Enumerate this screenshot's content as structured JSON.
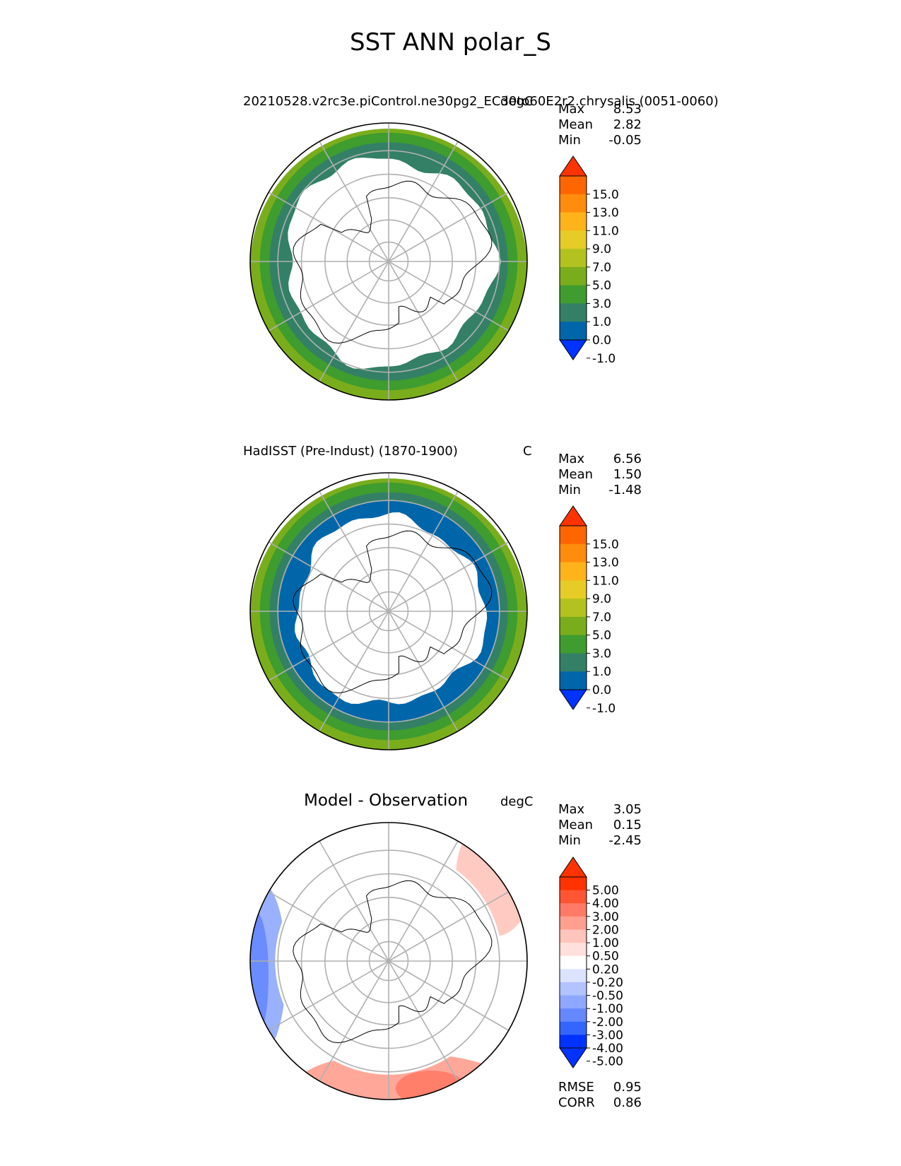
{
  "figure": {
    "title": "SST ANN polar_S"
  },
  "colors": {
    "land": "#ffffff",
    "coast": "#000000",
    "grid": "#b0b0b0",
    "abs_levels": [
      "#0033ff",
      "#0066aa",
      "#338066",
      "#3f9c2f",
      "#7aad1c",
      "#b3c21f",
      "#e6cc26",
      "#ffb31a",
      "#ff8c0d",
      "#ff6600",
      "#ff3300"
    ],
    "diff_levels": [
      "#0033ff",
      "#3366ff",
      "#6688ff",
      "#8fa8ff",
      "#b3c3ff",
      "#dbe3ff",
      "#ffffff",
      "#ffe0dc",
      "#ffc4bb",
      "#ff9f8f",
      "#ff7a66",
      "#ff5533",
      "#ff3300"
    ]
  },
  "panels": [
    {
      "id": "model",
      "left_title": "20210528.v2rc3e.piControl.ne30pg2_EC30to60E2r2.chrysalis (0051-0060)",
      "right_title": "degC",
      "stats": [
        {
          "k": "Max",
          "v": "8.53"
        },
        {
          "k": "Mean",
          "v": "2.82"
        },
        {
          "k": "Min",
          "v": "-0.05"
        }
      ],
      "colorbar_labels": [
        "15.0",
        "13.0",
        "11.0",
        "9.0",
        "7.0",
        "5.0",
        "3.0",
        "1.0",
        "0.0",
        "-1.0"
      ]
    },
    {
      "id": "obs",
      "left_title": "HadISST (Pre-Indust) (1870-1900)",
      "right_title": "C",
      "stats": [
        {
          "k": "Max",
          "v": "6.56"
        },
        {
          "k": "Mean",
          "v": "1.50"
        },
        {
          "k": "Min",
          "v": "-1.48"
        }
      ],
      "colorbar_labels": [
        "15.0",
        "13.0",
        "11.0",
        "9.0",
        "7.0",
        "5.0",
        "3.0",
        "1.0",
        "0.0",
        "-1.0"
      ]
    },
    {
      "id": "diff",
      "center_title": "Model - Observation",
      "right_title": "degC",
      "stats": [
        {
          "k": "Max",
          "v": "3.05"
        },
        {
          "k": "Mean",
          "v": "0.15"
        },
        {
          "k": "Min",
          "v": "-2.45"
        }
      ],
      "colorbar_labels": [
        "5.00",
        "4.00",
        "3.00",
        "2.00",
        "1.00",
        "0.50",
        "0.20",
        "-0.20",
        "-0.50",
        "-1.00",
        "-2.00",
        "-3.00",
        "-4.00",
        "-5.00"
      ],
      "metrics": [
        {
          "k": "RMSE",
          "v": "0.95"
        },
        {
          "k": "CORR",
          "v": "0.86"
        }
      ]
    }
  ],
  "chart_data": {
    "type": "heatmap",
    "title": "SST ANN polar_S",
    "projection": "south polar stereographic",
    "panels": [
      {
        "name": "20210528.v2rc3e.piControl.ne30pg2_EC30to60E2r2.chrysalis (0051-0060)",
        "units": "degC",
        "max": 8.53,
        "mean": 2.82,
        "min": -0.05,
        "contour_levels": [
          -1.0,
          0.0,
          1.0,
          3.0,
          5.0,
          7.0,
          9.0,
          11.0,
          13.0,
          15.0
        ],
        "ring_values": [
          0.6,
          2.0,
          4.0
        ],
        "sea_ice_fraction": 0.75
      },
      {
        "name": "HadISST (Pre-Indust) (1870-1900)",
        "units": "C",
        "max": 6.56,
        "mean": 1.5,
        "min": -1.48,
        "contour_levels": [
          -1.0,
          0.0,
          1.0,
          3.0,
          5.0,
          7.0,
          9.0,
          11.0,
          13.0,
          15.0
        ],
        "ring_values": [
          -0.5,
          0.6,
          2.0,
          4.0
        ],
        "sea_ice_fraction": 0.68
      },
      {
        "name": "Model - Observation",
        "units": "degC",
        "max": 3.05,
        "mean": 0.15,
        "min": -2.45,
        "contour_levels": [
          -5.0,
          -4.0,
          -3.0,
          -2.0,
          -1.0,
          -0.5,
          -0.2,
          0.2,
          0.5,
          1.0,
          2.0,
          3.0,
          4.0,
          5.0
        ],
        "rmse": 0.95,
        "corr": 0.86
      }
    ]
  }
}
